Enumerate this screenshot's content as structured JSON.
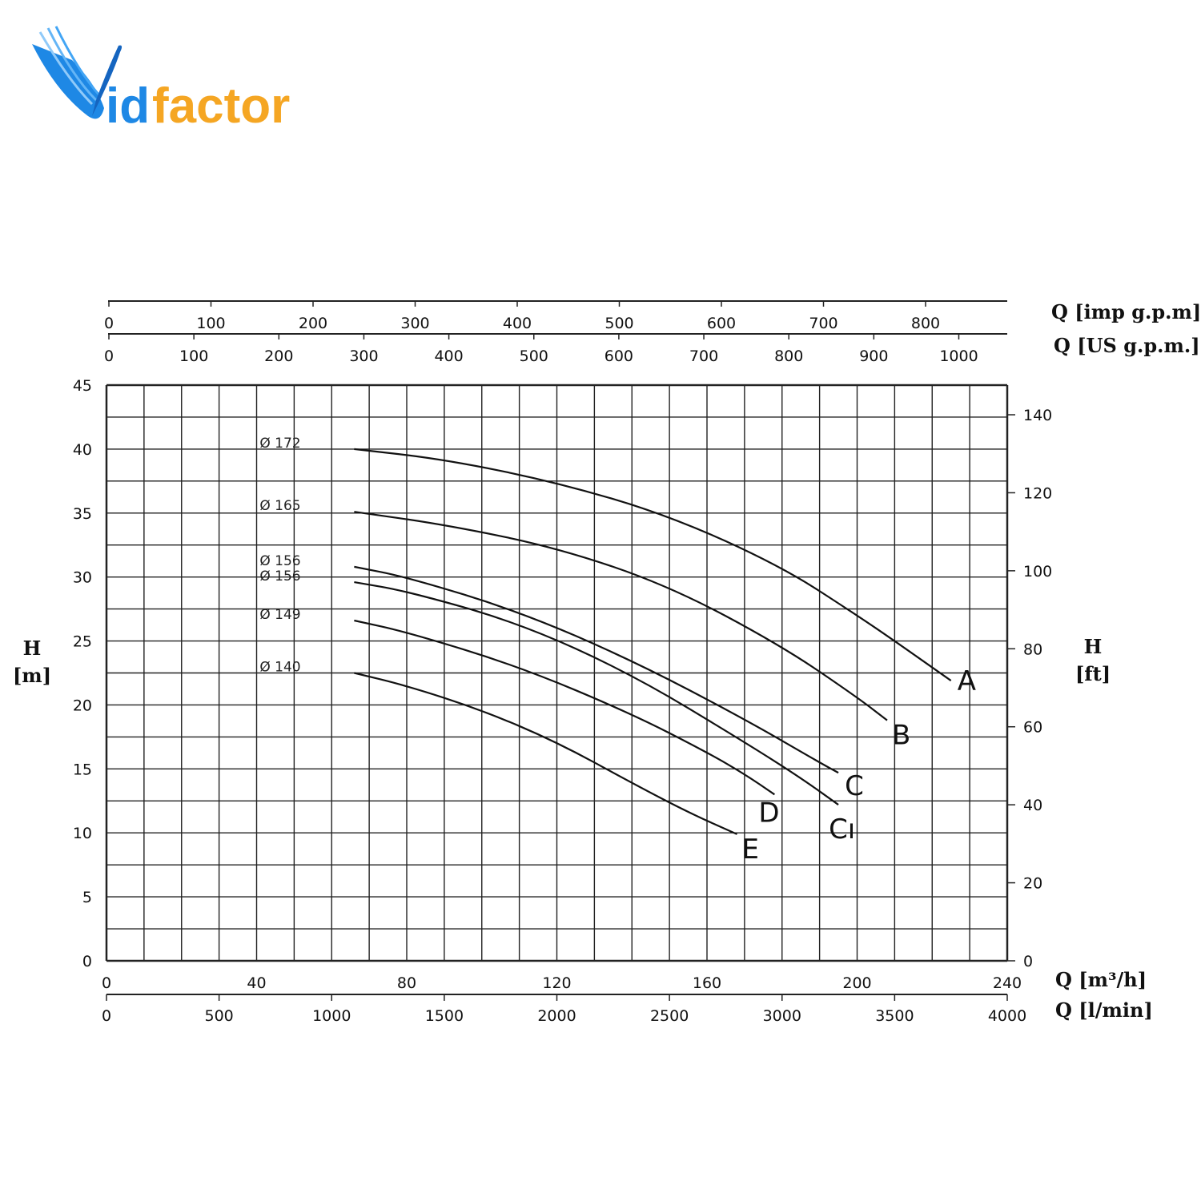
{
  "logo": {
    "text_id": "id",
    "text_factor": "factor",
    "color_blue": "#1e88e5",
    "color_orange": "#f5a623"
  },
  "chart_data": {
    "type": "line",
    "title": "",
    "x_axes": {
      "primary": {
        "label": "Q [m³/h]",
        "ticks": [
          0,
          40,
          80,
          120,
          160,
          200,
          240
        ],
        "range": [
          0,
          240
        ]
      },
      "bottom2": {
        "label": "Q [l/min]",
        "ticks": [
          0,
          500,
          1000,
          1500,
          2000,
          2500,
          3000,
          3500,
          4000
        ],
        "range": [
          0,
          4000
        ]
      },
      "top1": {
        "label": "Q [imp g.p.m]",
        "ticks": [
          0,
          100,
          200,
          300,
          400,
          500,
          600,
          700,
          800
        ],
        "range": [
          0,
          880
        ]
      },
      "top2": {
        "label": "Q [US g.p.m.]",
        "ticks": [
          0,
          100,
          200,
          300,
          400,
          500,
          600,
          700,
          800,
          900,
          1000
        ],
        "range": [
          0,
          1057
        ]
      }
    },
    "y_axes": {
      "left": {
        "label_line1": "H",
        "label_line2": "[m]",
        "ticks": [
          0,
          5,
          10,
          15,
          20,
          25,
          30,
          35,
          40,
          45
        ],
        "range": [
          0,
          45
        ]
      },
      "right": {
        "label_line1": "H",
        "label_line2": "[ft]",
        "ticks": [
          0,
          20,
          40,
          60,
          80,
          100,
          120,
          140
        ],
        "range": [
          0,
          147.6
        ]
      }
    },
    "grid": true,
    "series": [
      {
        "name": "A",
        "diameter": "Ø 172",
        "color": "#111111",
        "x": [
          66,
          90,
          120,
          150,
          180,
          200,
          210,
          225
        ],
        "y": [
          40,
          39.2,
          37.4,
          34.8,
          30.8,
          27.0,
          25.0,
          21.9
        ]
      },
      {
        "name": "B",
        "diameter": "Ø 165",
        "color": "#111111",
        "x": [
          66,
          90,
          120,
          150,
          180,
          200,
          208
        ],
        "y": [
          35.1,
          34.1,
          32.3,
          29.3,
          24.6,
          20.6,
          18.8
        ]
      },
      {
        "name": "C",
        "diameter": "Ø 156",
        "color": "#111111",
        "x": [
          66,
          80,
          110,
          140,
          170,
          190,
          195
        ],
        "y": [
          30.8,
          30.0,
          27.3,
          23.5,
          18.9,
          15.5,
          14.7
        ]
      },
      {
        "name": "C1",
        "diameter": "Ø 156",
        "color": "#111111",
        "x": [
          66,
          80,
          110,
          140,
          170,
          185,
          195
        ],
        "y": [
          29.6,
          28.9,
          26.4,
          22.4,
          17.1,
          14.3,
          12.2
        ]
      },
      {
        "name": "D",
        "diameter": "Ø 149",
        "color": "#111111",
        "x": [
          66,
          80,
          110,
          140,
          160,
          170,
          178
        ],
        "y": [
          26.6,
          25.7,
          23.0,
          19.3,
          16.3,
          14.6,
          13.0
        ]
      },
      {
        "name": "E",
        "diameter": "Ø 140",
        "color": "#111111",
        "x": [
          66,
          80,
          100,
          120,
          140,
          155,
          168
        ],
        "y": [
          22.5,
          21.5,
          19.6,
          17.1,
          13.9,
          11.6,
          9.9
        ]
      }
    ],
    "curve_labels": [
      {
        "text": "A",
        "color": "#111111"
      },
      {
        "text": "B",
        "color": "#111111"
      },
      {
        "text": "C",
        "color": "#111111"
      },
      {
        "text": "Cı",
        "color": "#111111"
      },
      {
        "text": "D",
        "color": "#e01b1b"
      },
      {
        "text": "E",
        "color": "#111111"
      }
    ]
  }
}
